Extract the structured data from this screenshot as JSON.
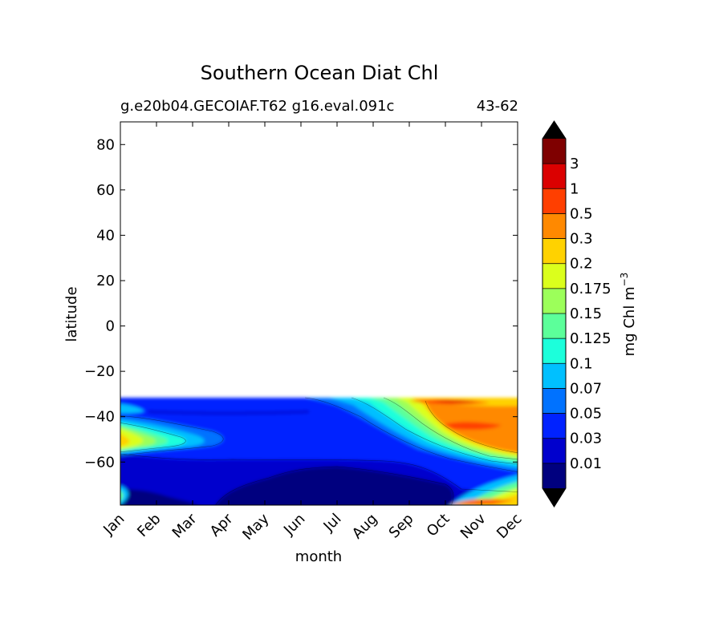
{
  "chart_data": {
    "type": "heatmap",
    "title": "Southern Ocean Diat Chl",
    "subtitle_left": "g.e20b04.GECOIAF.T62 g16.eval.091c",
    "subtitle_right": "43-62",
    "xlabel": "month",
    "ylabel": "latitude",
    "x_categories": [
      "Jan",
      "Feb",
      "Mar",
      "Apr",
      "May",
      "Jun",
      "Jul",
      "Aug",
      "Sep",
      "Oct",
      "Nov",
      "Dec"
    ],
    "y_ticks": [
      80,
      60,
      40,
      20,
      0,
      -20,
      -40,
      -60
    ],
    "y_tick_labels": [
      "80",
      "60",
      "40",
      "20",
      "0",
      "−20",
      "−40",
      "−60"
    ],
    "ylim": [
      -79,
      90
    ],
    "data_lat_range": [
      -79,
      -31
    ],
    "colorbar": {
      "label": "mg Chl m",
      "label_exponent": "−3",
      "levels": [
        "0.01",
        "0.03",
        "0.05",
        "0.07",
        "0.1",
        "0.125",
        "0.15",
        "0.175",
        "0.2",
        "0.3",
        "0.5",
        "1",
        "3"
      ],
      "colors": [
        "#00007f",
        "#0000cd",
        "#0022ff",
        "#0072ff",
        "#00c0ff",
        "#1cffdb",
        "#5cff9a",
        "#9cff5a",
        "#dbff1c",
        "#ffd200",
        "#ff8900",
        "#ff3f00",
        "#db0000",
        "#7f0000"
      ],
      "extend": "both"
    },
    "grid": "off"
  }
}
